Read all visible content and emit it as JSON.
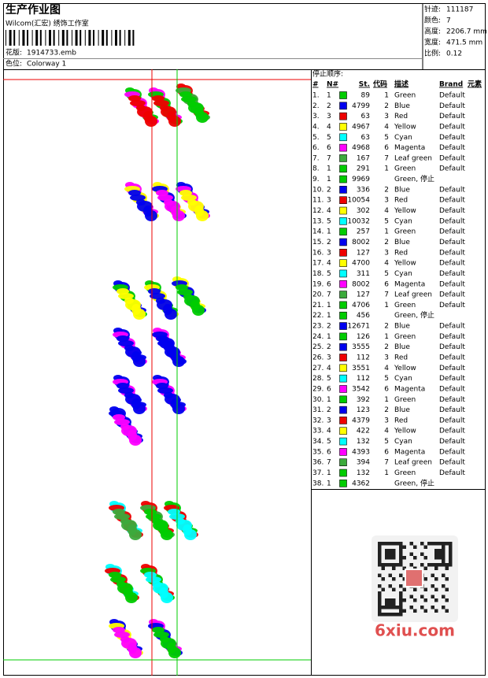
{
  "header": {
    "title": "生产作业图",
    "subtitle": "Wilcom(汇宏) 绣饰工作室",
    "design_label": "花版:",
    "design_file": "1914733.emb",
    "colorway_label": "色位:",
    "colorway": "Colorway 1"
  },
  "info": [
    {
      "label": "针迹:",
      "value": "111187"
    },
    {
      "label": "颜色:",
      "value": "7"
    },
    {
      "label": "高度:",
      "value": "2206.7 mm"
    },
    {
      "label": "宽度:",
      "value": "471.5 mm"
    },
    {
      "label": "比例:",
      "value": "0.12"
    }
  ],
  "table": {
    "title": "停止顺序:",
    "columns": [
      "#",
      "N#",
      "St.",
      "代码",
      "描述",
      "Brand",
      "元素"
    ],
    "rows": [
      {
        "n": "1.",
        "needle": "1",
        "color": "#00cc00",
        "st": "89",
        "code": "1",
        "desc": "Green",
        "brand": "Default"
      },
      {
        "n": "2.",
        "needle": "2",
        "color": "#0000ee",
        "st": "4799",
        "code": "2",
        "desc": "Blue",
        "brand": "Default"
      },
      {
        "n": "3.",
        "needle": "3",
        "color": "#ee0000",
        "st": "63",
        "code": "3",
        "desc": "Red",
        "brand": "Default"
      },
      {
        "n": "4.",
        "needle": "4",
        "color": "#ffff00",
        "st": "4967",
        "code": "4",
        "desc": "Yellow",
        "brand": "Default"
      },
      {
        "n": "5.",
        "needle": "5",
        "color": "#00ffff",
        "st": "63",
        "code": "5",
        "desc": "Cyan",
        "brand": "Default"
      },
      {
        "n": "6.",
        "needle": "6",
        "color": "#ff00ff",
        "st": "4968",
        "code": "6",
        "desc": "Magenta",
        "brand": "Default"
      },
      {
        "n": "7.",
        "needle": "7",
        "color": "#3caa3c",
        "st": "167",
        "code": "7",
        "desc": "Leaf green",
        "brand": "Default"
      },
      {
        "n": "8.",
        "needle": "1",
        "color": "#00cc00",
        "st": "291",
        "code": "1",
        "desc": "Green",
        "brand": "Default"
      },
      {
        "n": "9.",
        "needle": "1",
        "color": "#00cc00",
        "st": "9969",
        "desc": "Green, 停止"
      },
      {
        "n": "10.",
        "needle": "2",
        "color": "#0000ee",
        "st": "336",
        "code": "2",
        "desc": "Blue",
        "brand": "Default"
      },
      {
        "n": "11.",
        "needle": "3",
        "color": "#ee0000",
        "st": "10054",
        "code": "3",
        "desc": "Red",
        "brand": "Default"
      },
      {
        "n": "12.",
        "needle": "4",
        "color": "#ffff00",
        "st": "302",
        "code": "4",
        "desc": "Yellow",
        "brand": "Default"
      },
      {
        "n": "13.",
        "needle": "5",
        "color": "#00ffff",
        "st": "10032",
        "code": "5",
        "desc": "Cyan",
        "brand": "Default"
      },
      {
        "n": "14.",
        "needle": "1",
        "color": "#00cc00",
        "st": "257",
        "code": "1",
        "desc": "Green",
        "brand": "Default"
      },
      {
        "n": "15.",
        "needle": "2",
        "color": "#0000ee",
        "st": "8002",
        "code": "2",
        "desc": "Blue",
        "brand": "Default"
      },
      {
        "n": "16.",
        "needle": "3",
        "color": "#ee0000",
        "st": "127",
        "code": "3",
        "desc": "Red",
        "brand": "Default"
      },
      {
        "n": "17.",
        "needle": "4",
        "color": "#ffff00",
        "st": "4700",
        "code": "4",
        "desc": "Yellow",
        "brand": "Default"
      },
      {
        "n": "18.",
        "needle": "5",
        "color": "#00ffff",
        "st": "311",
        "code": "5",
        "desc": "Cyan",
        "brand": "Default"
      },
      {
        "n": "19.",
        "needle": "6",
        "color": "#ff00ff",
        "st": "8002",
        "code": "6",
        "desc": "Magenta",
        "brand": "Default"
      },
      {
        "n": "20.",
        "needle": "7",
        "color": "#3caa3c",
        "st": "127",
        "code": "7",
        "desc": "Leaf green",
        "brand": "Default"
      },
      {
        "n": "21.",
        "needle": "1",
        "color": "#00cc00",
        "st": "4706",
        "code": "1",
        "desc": "Green",
        "brand": "Default"
      },
      {
        "n": "22.",
        "needle": "1",
        "color": "#00cc00",
        "st": "456",
        "desc": "Green, 停止"
      },
      {
        "n": "23.",
        "needle": "2",
        "color": "#0000ee",
        "st": "12671",
        "code": "2",
        "desc": "Blue",
        "brand": "Default"
      },
      {
        "n": "24.",
        "needle": "1",
        "color": "#00cc00",
        "st": "126",
        "code": "1",
        "desc": "Green",
        "brand": "Default"
      },
      {
        "n": "25.",
        "needle": "2",
        "color": "#0000ee",
        "st": "3555",
        "code": "2",
        "desc": "Blue",
        "brand": "Default"
      },
      {
        "n": "26.",
        "needle": "3",
        "color": "#ee0000",
        "st": "112",
        "code": "3",
        "desc": "Red",
        "brand": "Default"
      },
      {
        "n": "27.",
        "needle": "4",
        "color": "#ffff00",
        "st": "3551",
        "code": "4",
        "desc": "Yellow",
        "brand": "Default"
      },
      {
        "n": "28.",
        "needle": "5",
        "color": "#00ffff",
        "st": "112",
        "code": "5",
        "desc": "Cyan",
        "brand": "Default"
      },
      {
        "n": "29.",
        "needle": "6",
        "color": "#ff00ff",
        "st": "3542",
        "code": "6",
        "desc": "Magenta",
        "brand": "Default"
      },
      {
        "n": "30.",
        "needle": "1",
        "color": "#00cc00",
        "st": "392",
        "code": "1",
        "desc": "Green",
        "brand": "Default"
      },
      {
        "n": "31.",
        "needle": "2",
        "color": "#0000ee",
        "st": "123",
        "code": "2",
        "desc": "Blue",
        "brand": "Default"
      },
      {
        "n": "32.",
        "needle": "3",
        "color": "#ee0000",
        "st": "4379",
        "code": "3",
        "desc": "Red",
        "brand": "Default"
      },
      {
        "n": "33.",
        "needle": "4",
        "color": "#ffff00",
        "st": "422",
        "code": "4",
        "desc": "Yellow",
        "brand": "Default"
      },
      {
        "n": "34.",
        "needle": "5",
        "color": "#00ffff",
        "st": "132",
        "code": "5",
        "desc": "Cyan",
        "brand": "Default"
      },
      {
        "n": "35.",
        "needle": "6",
        "color": "#ff00ff",
        "st": "4393",
        "code": "6",
        "desc": "Magenta",
        "brand": "Default"
      },
      {
        "n": "36.",
        "needle": "7",
        "color": "#3caa3c",
        "st": "394",
        "code": "7",
        "desc": "Leaf green",
        "brand": "Default"
      },
      {
        "n": "37.",
        "needle": "1",
        "color": "#00cc00",
        "st": "132",
        "code": "1",
        "desc": "Green",
        "brand": "Default"
      },
      {
        "n": "38.",
        "needle": "1",
        "color": "#00cc00",
        "st": "4362",
        "desc": "Green, 停止"
      }
    ]
  },
  "watermark": "6xiu.com"
}
